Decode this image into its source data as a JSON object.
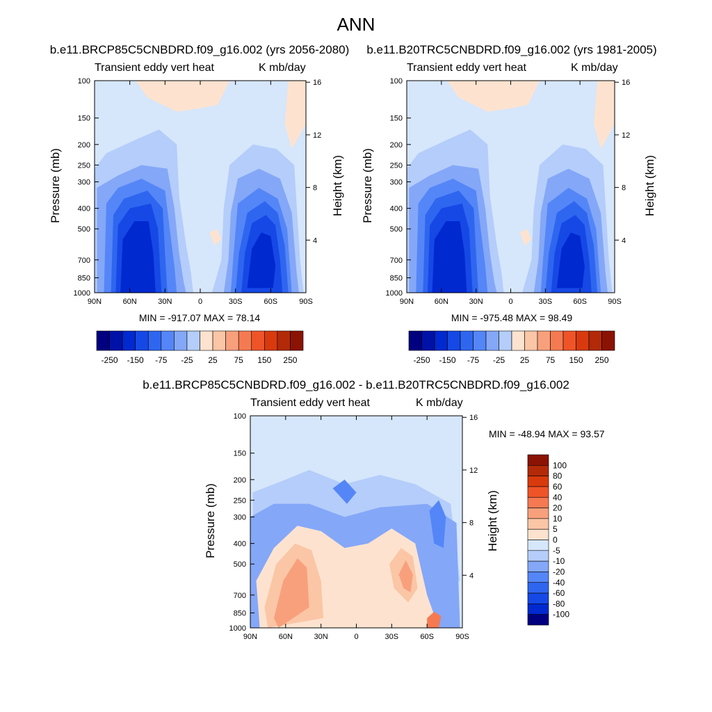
{
  "page_title": "ANN",
  "colors": {
    "neg": [
      "#000080",
      "#0011a8",
      "#0029d0",
      "#1648e6",
      "#2f66f0",
      "#5486f7",
      "#84a7f8",
      "#b4cdfa",
      "#d6e6fb"
    ],
    "zero_band": "#d6e6fb",
    "pos": [
      "#fde3cf",
      "#fbc6a6",
      "#f8a07c",
      "#f57a52",
      "#ef5428",
      "#d83a0d",
      "#b22a08",
      "#8b1304"
    ]
  },
  "panels": {
    "p1": {
      "title": "b.e11.BRCP85C5CNBDRD.f09_g16.002 (yrs 2056-2080)",
      "left_label": "Transient eddy vert heat",
      "right_label": "K mb/day",
      "minmax": "MIN = -917.07  MAX =  78.14"
    },
    "p2": {
      "title": "b.e11.B20TRC5CNBDRD.f09_g16.002 (yrs 1981-2005)",
      "left_label": "Transient eddy vert heat",
      "right_label": "K mb/day",
      "minmax": "MIN = -975.48  MAX =  98.49"
    },
    "p3": {
      "title": "b.e11.BRCP85C5CNBDRD.f09_g16.002 - b.e11.B20TRC5CNBDRD.f09_g16.002",
      "left_label": "Transient eddy vert heat",
      "right_label": "K mb/day",
      "minmax": "MIN = -48.94  MAX =  93.57"
    }
  },
  "axes": {
    "ylabel": "Pressure (mb)",
    "ylabel_right": "Height (km)",
    "pressure_ticks": [
      "100",
      "150",
      "200",
      "250",
      "300",
      "400",
      "500",
      "700",
      "850",
      "1000"
    ],
    "height_ticks": [
      "16",
      "12",
      "8",
      "4"
    ],
    "lat_ticks": [
      "90N",
      "60N",
      "30N",
      "0",
      "30S",
      "60S",
      "90S"
    ]
  },
  "colorbar_horizontal": {
    "labels": [
      "-250",
      "-150",
      "-75",
      "-25",
      "25",
      "75",
      "150",
      "250"
    ]
  },
  "colorbar_vertical": {
    "labels": [
      "100",
      "80",
      "60",
      "40",
      "20",
      "10",
      "5",
      "0",
      "-5",
      "-10",
      "-20",
      "-40",
      "-60",
      "-80",
      "-100"
    ]
  },
  "chart_data": [
    {
      "type": "heatmap",
      "title": "b.e11.BRCP85C5CNBDRD.f09_g16.002 (yrs 2056-2080)",
      "variable": "Transient eddy vert heat",
      "units": "K mb/day",
      "xlabel": "",
      "ylabel": "Pressure (mb)",
      "ylabel_right": "Height (km)",
      "x_ticks": [
        "90N",
        "60N",
        "30N",
        "0",
        "30S",
        "60S",
        "90S"
      ],
      "y_ticks": [
        100,
        150,
        200,
        250,
        300,
        400,
        500,
        700,
        850,
        1000
      ],
      "y_log": true,
      "min": -917.07,
      "max": 78.14,
      "contour_levels": [
        -250,
        -200,
        -150,
        -100,
        -75,
        -50,
        -25,
        0,
        25,
        50,
        75,
        100,
        150,
        200,
        250
      ]
    },
    {
      "type": "heatmap",
      "title": "b.e11.B20TRC5CNBDRD.f09_g16.002 (yrs 1981-2005)",
      "variable": "Transient eddy vert heat",
      "units": "K mb/day",
      "xlabel": "",
      "ylabel": "Pressure (mb)",
      "ylabel_right": "Height (km)",
      "x_ticks": [
        "90N",
        "60N",
        "30N",
        "0",
        "30S",
        "60S",
        "90S"
      ],
      "y_ticks": [
        100,
        150,
        200,
        250,
        300,
        400,
        500,
        700,
        850,
        1000
      ],
      "y_log": true,
      "min": -975.48,
      "max": 98.49,
      "contour_levels": [
        -250,
        -200,
        -150,
        -100,
        -75,
        -50,
        -25,
        0,
        25,
        50,
        75,
        100,
        150,
        200,
        250
      ]
    },
    {
      "type": "heatmap",
      "title": "b.e11.BRCP85C5CNBDRD.f09_g16.002 - b.e11.B20TRC5CNBDRD.f09_g16.002",
      "variable": "Transient eddy vert heat",
      "units": "K mb/day",
      "xlabel": "",
      "ylabel": "Pressure (mb)",
      "ylabel_right": "Height (km)",
      "x_ticks": [
        "90N",
        "60N",
        "30N",
        "0",
        "30S",
        "60S",
        "90S"
      ],
      "y_ticks": [
        100,
        150,
        200,
        250,
        300,
        400,
        500,
        700,
        850,
        1000
      ],
      "y_log": true,
      "min": -48.94,
      "max": 93.57,
      "contour_levels": [
        -100,
        -80,
        -60,
        -40,
        -20,
        -10,
        -5,
        0,
        5,
        10,
        20,
        40,
        60,
        80,
        100
      ]
    }
  ]
}
